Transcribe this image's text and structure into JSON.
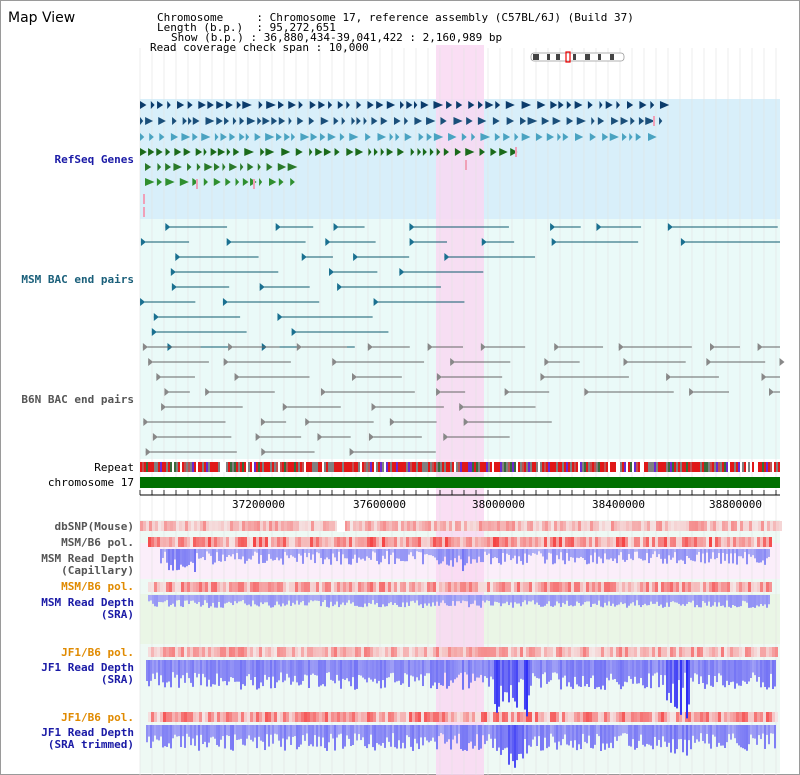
{
  "title": "Map View",
  "info": {
    "chromosome_label": "Chromosome",
    "chromosome_value": "Chromosome 17, reference assembly (C57BL/6J) (Build 37)",
    "length_label": "Length (b.p.)",
    "length_value": "95,272,651",
    "show_label": "Show (b.p.)",
    "show_value": "36,880,434-39,041,422 : 2,160,989 bp",
    "coverage_label": "Read coverage check span",
    "coverage_value": "10,000"
  },
  "tracks": {
    "refseq": "RefSeq Genes",
    "msm_bac": "MSM BAC end pairs",
    "b6n_bac": "B6N BAC end pairs",
    "repeat": "Repeat",
    "chromosome": "chromosome 17",
    "dbsnp": "dbSNP(Mouse)",
    "msm_b6_pol_1": "MSM/B6 pol.",
    "msm_read_depth_cap_1": "MSM Read Depth",
    "msm_read_depth_cap_2": "(Capillary)",
    "msm_b6_pol_2": "MSM/B6 pol.",
    "msm_read_depth_sra_1": "MSM Read Depth",
    "msm_read_depth_sra_2": "(SRA)",
    "jf1_b6_pol_1": "JF1/B6 pol.",
    "jf1_read_depth_sra_1": "JF1 Read Depth",
    "jf1_read_depth_sra_2": "(SRA)",
    "jf1_b6_pol_2": "JF1/B6 pol.",
    "jf1_read_depth_trim_1": "JF1 Read Depth",
    "jf1_read_depth_trim_2": "(SRA trimmed)"
  },
  "ruler": {
    "ticks": [
      "37200000",
      "37600000",
      "38000000",
      "38400000",
      "38800000"
    ]
  },
  "colors": {
    "refseq_bg": "#d8effa",
    "light_bg": "#eafaf8",
    "highlight": "#f9d8f2",
    "chromosome_bar": "#007000",
    "gene_dark": "#0b3b6b",
    "gene_teal": "#4aa3c1",
    "gene_green": "#1a6a1a",
    "depth_blue": "#3333ee",
    "snp_red": "#f25050"
  }
}
